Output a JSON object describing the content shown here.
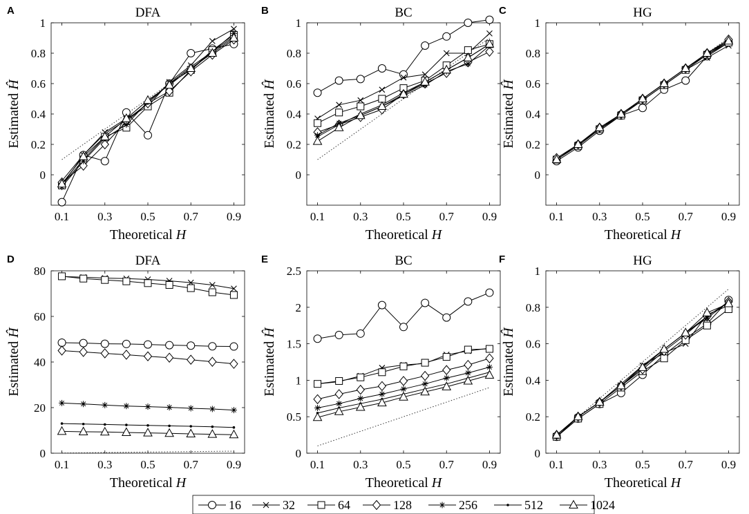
{
  "legend": [
    {
      "name": "16",
      "marker": "circle"
    },
    {
      "name": "32",
      "marker": "x"
    },
    {
      "name": "64",
      "marker": "square"
    },
    {
      "name": "128",
      "marker": "diamond"
    },
    {
      "name": "256",
      "marker": "star"
    },
    {
      "name": "512",
      "marker": "dot"
    },
    {
      "name": "1024",
      "marker": "triangle"
    }
  ],
  "chart_data": [
    {
      "panel": "A",
      "title": "DFA",
      "type": "line",
      "xlabel": "Theoretical H",
      "ylabel": "Estimated Ĥ",
      "xlim": [
        0.05,
        0.95
      ],
      "ylim": [
        -0.2,
        1.0
      ],
      "xticks": [
        "0.1",
        "0.3",
        "0.5",
        "0.7",
        "0.9"
      ],
      "yticks": [
        "0",
        "0.2",
        "0.4",
        "0.6",
        "0.8",
        "1"
      ],
      "x": [
        0.1,
        0.2,
        0.3,
        0.4,
        0.5,
        0.6,
        0.7,
        0.8,
        0.9
      ],
      "reference_line": true,
      "series": [
        {
          "name": "16",
          "values": [
            -0.18,
            0.13,
            0.09,
            0.41,
            0.26,
            0.6,
            0.8,
            0.83,
            0.86
          ]
        },
        {
          "name": "32",
          "values": [
            -0.07,
            0.13,
            0.28,
            0.37,
            0.45,
            0.61,
            0.72,
            0.88,
            0.96
          ]
        },
        {
          "name": "64",
          "values": [
            -0.07,
            0.1,
            0.25,
            0.31,
            0.45,
            0.54,
            0.69,
            0.82,
            0.92
          ]
        },
        {
          "name": "128",
          "values": [
            -0.05,
            0.06,
            0.2,
            0.35,
            0.47,
            0.55,
            0.68,
            0.79,
            0.89
          ]
        },
        {
          "name": "256",
          "values": [
            -0.08,
            0.09,
            0.24,
            0.33,
            0.48,
            0.6,
            0.71,
            0.81,
            0.93
          ]
        },
        {
          "name": "512",
          "values": [
            -0.04,
            0.13,
            0.27,
            0.36,
            0.47,
            0.6,
            0.69,
            0.81,
            0.91
          ]
        },
        {
          "name": "1024",
          "values": [
            -0.06,
            0.12,
            0.25,
            0.37,
            0.49,
            0.59,
            0.7,
            0.8,
            0.9
          ]
        }
      ]
    },
    {
      "panel": "B",
      "title": "BC",
      "type": "line",
      "xlabel": "Theoretical H",
      "ylabel": "Estimated Ĥ",
      "xlim": [
        0.05,
        0.95
      ],
      "ylim": [
        -0.2,
        1.0
      ],
      "xticks": [
        "0.1",
        "0.3",
        "0.5",
        "0.7",
        "0.9"
      ],
      "yticks": [
        "0",
        "0.2",
        "0.4",
        "0.6",
        "0.8",
        "1"
      ],
      "x": [
        0.1,
        0.2,
        0.3,
        0.4,
        0.5,
        0.6,
        0.7,
        0.8,
        0.9
      ],
      "reference_line": true,
      "series": [
        {
          "name": "16",
          "values": [
            0.54,
            0.62,
            0.63,
            0.7,
            0.66,
            0.85,
            0.91,
            1.0,
            1.02
          ]
        },
        {
          "name": "32",
          "values": [
            0.37,
            0.46,
            0.49,
            0.56,
            0.64,
            0.66,
            0.8,
            0.8,
            0.93
          ]
        },
        {
          "name": "64",
          "values": [
            0.34,
            0.41,
            0.45,
            0.5,
            0.57,
            0.62,
            0.72,
            0.82,
            0.86
          ]
        },
        {
          "name": "128",
          "values": [
            0.28,
            0.33,
            0.38,
            0.43,
            0.53,
            0.6,
            0.67,
            0.74,
            0.81
          ]
        },
        {
          "name": "256",
          "values": [
            0.26,
            0.34,
            0.39,
            0.45,
            0.52,
            0.59,
            0.68,
            0.73,
            0.85
          ]
        },
        {
          "name": "512",
          "values": [
            0.25,
            0.33,
            0.4,
            0.46,
            0.54,
            0.61,
            0.69,
            0.77,
            0.86
          ]
        },
        {
          "name": "1024",
          "values": [
            0.22,
            0.31,
            0.39,
            0.45,
            0.53,
            0.61,
            0.69,
            0.77,
            0.86
          ]
        }
      ]
    },
    {
      "panel": "C",
      "title": "HG",
      "type": "line",
      "xlabel": "Theoretical H",
      "ylabel": "Estimated Ĥ",
      "xlim": [
        0.05,
        0.95
      ],
      "ylim": [
        -0.2,
        1.0
      ],
      "xticks": [
        "0.1",
        "0.3",
        "0.5",
        "0.7",
        "0.9"
      ],
      "yticks": [
        "0",
        "0.2",
        "0.4",
        "0.6",
        "0.8",
        "1"
      ],
      "x": [
        0.1,
        0.2,
        0.3,
        0.4,
        0.5,
        0.6,
        0.7,
        0.8,
        0.9
      ],
      "reference_line": true,
      "series": [
        {
          "name": "16",
          "values": [
            0.09,
            0.18,
            0.29,
            0.39,
            0.44,
            0.56,
            0.62,
            0.78,
            0.87
          ]
        },
        {
          "name": "32",
          "values": [
            0.1,
            0.2,
            0.3,
            0.4,
            0.49,
            0.59,
            0.69,
            0.77,
            0.85
          ]
        },
        {
          "name": "64",
          "values": [
            0.1,
            0.19,
            0.3,
            0.39,
            0.49,
            0.59,
            0.69,
            0.79,
            0.87
          ]
        },
        {
          "name": "128",
          "values": [
            0.11,
            0.2,
            0.31,
            0.4,
            0.5,
            0.6,
            0.7,
            0.8,
            0.89
          ]
        },
        {
          "name": "256",
          "values": [
            0.1,
            0.2,
            0.3,
            0.4,
            0.5,
            0.6,
            0.7,
            0.79,
            0.88
          ]
        },
        {
          "name": "512",
          "values": [
            0.1,
            0.2,
            0.3,
            0.4,
            0.5,
            0.6,
            0.7,
            0.8,
            0.88
          ]
        },
        {
          "name": "1024",
          "values": [
            0.1,
            0.2,
            0.31,
            0.4,
            0.5,
            0.6,
            0.7,
            0.8,
            0.88
          ]
        }
      ]
    },
    {
      "panel": "D",
      "title": "DFA",
      "type": "line",
      "xlabel": "Theoretical H",
      "ylabel": "Estimated Ĥ",
      "xlim": [
        0.05,
        0.95
      ],
      "ylim": [
        0,
        80
      ],
      "xticks": [
        "0.1",
        "0.3",
        "0.5",
        "0.7",
        "0.9"
      ],
      "yticks": [
        "0",
        "20",
        "40",
        "60",
        "80"
      ],
      "x": [
        0.1,
        0.2,
        0.3,
        0.4,
        0.5,
        0.6,
        0.7,
        0.8,
        0.9
      ],
      "reference_line": true,
      "series": [
        {
          "name": "16",
          "values": [
            48.5,
            48.3,
            48.0,
            47.9,
            47.7,
            47.4,
            47.2,
            46.9,
            46.8
          ]
        },
        {
          "name": "32",
          "values": [
            77.5,
            77.2,
            76.8,
            76.6,
            76.2,
            75.6,
            74.8,
            73.8,
            72.2
          ]
        },
        {
          "name": "64",
          "values": [
            77.6,
            76.6,
            76.0,
            75.4,
            74.6,
            73.8,
            72.4,
            70.6,
            69.4
          ]
        },
        {
          "name": "128",
          "values": [
            45.0,
            44.4,
            43.8,
            43.2,
            42.5,
            41.9,
            41.0,
            40.1,
            39.2
          ]
        },
        {
          "name": "256",
          "values": [
            22.0,
            21.6,
            21.1,
            20.7,
            20.4,
            20.1,
            19.7,
            19.4,
            18.9
          ]
        },
        {
          "name": "512",
          "values": [
            13.0,
            12.8,
            12.6,
            12.4,
            12.2,
            12.0,
            11.8,
            11.6,
            11.3
          ]
        },
        {
          "name": "1024",
          "values": [
            9.6,
            9.4,
            9.3,
            9.1,
            8.9,
            8.7,
            8.5,
            8.3,
            8.1
          ]
        }
      ]
    },
    {
      "panel": "E",
      "title": "BC",
      "type": "line",
      "xlabel": "Theoretical H",
      "ylabel": "Estimated Ĥ",
      "xlim": [
        0.05,
        0.95
      ],
      "ylim": [
        0,
        2.5
      ],
      "xticks": [
        "0.1",
        "0.3",
        "0.5",
        "0.7",
        "0.9"
      ],
      "yticks": [
        "0",
        "0.5",
        "1",
        "1.5",
        "2",
        "2.5"
      ],
      "x": [
        0.1,
        0.2,
        0.3,
        0.4,
        0.5,
        0.6,
        0.7,
        0.8,
        0.9
      ],
      "reference_line": true,
      "series": [
        {
          "name": "16",
          "values": [
            1.57,
            1.62,
            1.64,
            2.03,
            1.73,
            2.06,
            1.86,
            2.08,
            2.2
          ]
        },
        {
          "name": "32",
          "values": [
            0.95,
            0.98,
            1.06,
            1.17,
            1.21,
            1.23,
            1.35,
            1.4,
            1.44
          ]
        },
        {
          "name": "64",
          "values": [
            0.95,
            0.99,
            1.04,
            1.11,
            1.19,
            1.24,
            1.32,
            1.42,
            1.43
          ]
        },
        {
          "name": "128",
          "values": [
            0.74,
            0.81,
            0.87,
            0.92,
            0.99,
            1.06,
            1.14,
            1.21,
            1.3
          ]
        },
        {
          "name": "256",
          "values": [
            0.62,
            0.68,
            0.75,
            0.81,
            0.88,
            0.95,
            1.03,
            1.1,
            1.18
          ]
        },
        {
          "name": "512",
          "values": [
            0.55,
            0.62,
            0.68,
            0.74,
            0.81,
            0.88,
            0.95,
            1.03,
            1.11
          ]
        },
        {
          "name": "1024",
          "values": [
            0.49,
            0.57,
            0.63,
            0.69,
            0.77,
            0.84,
            0.91,
            0.99,
            1.07
          ]
        }
      ]
    },
    {
      "panel": "F",
      "title": "HG",
      "type": "line",
      "xlabel": "Theoretical H",
      "ylabel": "Estimated Ĥ",
      "xlim": [
        0.05,
        0.95
      ],
      "ylim": [
        0,
        1.0
      ],
      "xticks": [
        "0.1",
        "0.3",
        "0.5",
        "0.7",
        "0.9"
      ],
      "yticks": [
        "0",
        "0.2",
        "0.4",
        "0.6",
        "0.8",
        "1"
      ],
      "x": [
        0.1,
        0.2,
        0.3,
        0.4,
        0.5,
        0.6,
        0.7,
        0.8,
        0.9
      ],
      "reference_line": true,
      "series": [
        {
          "name": "16",
          "values": [
            0.09,
            0.19,
            0.27,
            0.33,
            0.43,
            0.54,
            0.63,
            0.71,
            0.84
          ]
        },
        {
          "name": "32",
          "values": [
            0.09,
            0.2,
            0.28,
            0.37,
            0.48,
            0.55,
            0.6,
            0.76,
            0.81
          ]
        },
        {
          "name": "64",
          "values": [
            0.09,
            0.19,
            0.27,
            0.36,
            0.45,
            0.52,
            0.62,
            0.7,
            0.79
          ]
        },
        {
          "name": "128",
          "values": [
            0.1,
            0.2,
            0.28,
            0.37,
            0.46,
            0.56,
            0.65,
            0.75,
            0.83
          ]
        },
        {
          "name": "256",
          "values": [
            0.09,
            0.2,
            0.28,
            0.37,
            0.47,
            0.57,
            0.66,
            0.74,
            0.83
          ]
        },
        {
          "name": "512",
          "values": [
            0.1,
            0.2,
            0.28,
            0.38,
            0.48,
            0.57,
            0.66,
            0.75,
            0.83
          ]
        },
        {
          "name": "1024",
          "values": [
            0.1,
            0.2,
            0.28,
            0.37,
            0.47,
            0.57,
            0.66,
            0.77,
            0.82
          ]
        }
      ]
    }
  ]
}
